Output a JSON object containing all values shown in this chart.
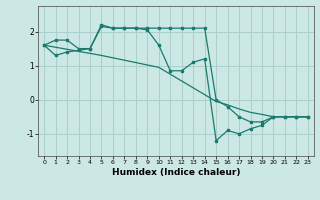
{
  "xlabel": "Humidex (Indice chaleur)",
  "bg_color": "#cce8e4",
  "grid_color": "#aacfca",
  "line_color": "#1a7a6e",
  "xlim": [
    -0.5,
    23.5
  ],
  "ylim": [
    -1.65,
    2.75
  ],
  "yticks": [
    -1,
    0,
    1,
    2
  ],
  "xticks": [
    0,
    1,
    2,
    3,
    4,
    5,
    6,
    7,
    8,
    9,
    10,
    11,
    12,
    13,
    14,
    15,
    16,
    17,
    18,
    19,
    20,
    21,
    22,
    23
  ],
  "line1_x": [
    0,
    1,
    2,
    3,
    4,
    5,
    6,
    7,
    8,
    9,
    10,
    11,
    12,
    13,
    14,
    15,
    16,
    17,
    18,
    19,
    20,
    21,
    22,
    23
  ],
  "line1_y": [
    1.6,
    1.3,
    1.4,
    1.45,
    1.5,
    2.15,
    2.1,
    2.1,
    2.1,
    2.05,
    1.6,
    0.85,
    0.85,
    1.1,
    1.2,
    -1.2,
    -0.9,
    -1.0,
    -0.85,
    -0.75,
    -0.5,
    -0.5,
    -0.5,
    -0.5
  ],
  "line2_x": [
    0,
    5,
    10,
    15,
    16,
    17,
    18,
    19,
    20,
    21,
    22,
    23
  ],
  "line2_y": [
    1.6,
    1.3,
    0.95,
    -0.05,
    -0.15,
    -0.27,
    -0.37,
    -0.43,
    -0.5,
    -0.5,
    -0.5,
    -0.5
  ],
  "line3_x": [
    0,
    1,
    2,
    3,
    4,
    5,
    6,
    7,
    8,
    9,
    10,
    11,
    12,
    13,
    14,
    15,
    16,
    17,
    18,
    19,
    20,
    21,
    22,
    23
  ],
  "line3_y": [
    1.6,
    1.75,
    1.75,
    1.5,
    1.5,
    2.2,
    2.1,
    2.1,
    2.1,
    2.1,
    2.1,
    2.1,
    2.1,
    2.1,
    2.1,
    0.0,
    -0.2,
    -0.5,
    -0.65,
    -0.65,
    -0.5,
    -0.5,
    -0.5,
    -0.5
  ]
}
